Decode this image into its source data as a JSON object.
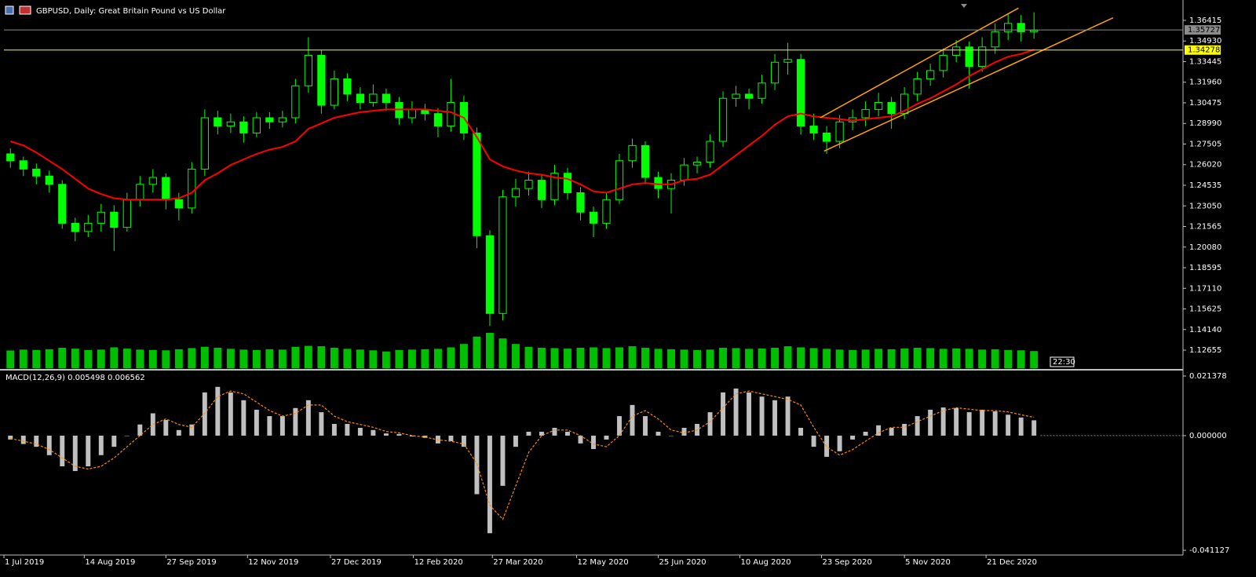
{
  "chart_data": [
    {
      "type": "candlestick",
      "title": "GBPUSD, Daily:  Great Britain Pound vs US Dollar",
      "xlim": [
        0,
        91
      ],
      "ylim": [
        1.113,
        1.376
      ],
      "yticks": [
        1.36415,
        {
          "value": 1.3493,
          "label": "1.34930"
        },
        1.33445,
        {
          "value": 1.3196,
          "label": "1.31960"
        },
        1.30475,
        {
          "value": 1.2899,
          "label": "1.28990"
        },
        1.27505,
        {
          "value": 1.2602,
          "label": "1.26020"
        },
        1.24535,
        {
          "value": 1.2305,
          "label": "1.23050"
        },
        1.21565,
        {
          "value": 1.2008,
          "label": "1.20080"
        },
        1.18595,
        {
          "value": 1.1711,
          "label": "1.17110"
        },
        1.15625,
        {
          "value": 1.1414,
          "label": "1.14140"
        },
        1.12655
      ],
      "color": "#00ff00",
      "ohlc": [
        [
          1.268,
          1.272,
          1.258,
          1.263
        ],
        [
          1.263,
          1.266,
          1.252,
          1.257
        ],
        [
          1.257,
          1.261,
          1.246,
          1.252
        ],
        [
          1.252,
          1.256,
          1.24,
          1.246
        ],
        [
          1.246,
          1.249,
          1.214,
          1.218
        ],
        [
          1.218,
          1.222,
          1.205,
          1.212
        ],
        [
          1.212,
          1.224,
          1.208,
          1.218
        ],
        [
          1.218,
          1.232,
          1.212,
          1.226
        ],
        [
          1.226,
          1.231,
          1.198,
          1.215
        ],
        [
          1.215,
          1.24,
          1.212,
          1.235
        ],
        [
          1.235,
          1.252,
          1.23,
          1.246
        ],
        [
          1.246,
          1.257,
          1.24,
          1.251
        ],
        [
          1.251,
          1.254,
          1.228,
          1.235
        ],
        [
          1.235,
          1.24,
          1.22,
          1.229
        ],
        [
          1.229,
          1.262,
          1.225,
          1.257
        ],
        [
          1.257,
          1.3,
          1.252,
          1.294
        ],
        [
          1.294,
          1.299,
          1.282,
          1.288
        ],
        [
          1.288,
          1.297,
          1.283,
          1.291
        ],
        [
          1.291,
          1.295,
          1.276,
          1.283
        ],
        [
          1.283,
          1.298,
          1.28,
          1.294
        ],
        [
          1.294,
          1.298,
          1.286,
          1.291
        ],
        [
          1.291,
          1.299,
          1.287,
          1.294
        ],
        [
          1.294,
          1.322,
          1.29,
          1.317
        ],
        [
          1.317,
          1.352,
          1.312,
          1.339
        ],
        [
          1.339,
          1.343,
          1.297,
          1.303
        ],
        [
          1.303,
          1.328,
          1.3,
          1.322
        ],
        [
          1.322,
          1.326,
          1.306,
          1.311
        ],
        [
          1.311,
          1.316,
          1.3,
          1.305
        ],
        [
          1.305,
          1.318,
          1.302,
          1.311
        ],
        [
          1.311,
          1.315,
          1.299,
          1.305
        ],
        [
          1.305,
          1.309,
          1.289,
          1.294
        ],
        [
          1.294,
          1.306,
          1.29,
          1.3
        ],
        [
          1.3,
          1.304,
          1.292,
          1.297
        ],
        [
          1.297,
          1.301,
          1.28,
          1.288
        ],
        [
          1.288,
          1.322,
          1.284,
          1.305
        ],
        [
          1.305,
          1.31,
          1.278,
          1.283
        ],
        [
          1.283,
          1.287,
          1.2,
          1.209
        ],
        [
          1.209,
          1.213,
          1.144,
          1.153
        ],
        [
          1.153,
          1.242,
          1.148,
          1.237
        ],
        [
          1.237,
          1.25,
          1.23,
          1.243
        ],
        [
          1.243,
          1.255,
          1.238,
          1.249
        ],
        [
          1.249,
          1.253,
          1.229,
          1.235
        ],
        [
          1.235,
          1.26,
          1.231,
          1.254
        ],
        [
          1.254,
          1.258,
          1.235,
          1.24
        ],
        [
          1.24,
          1.244,
          1.22,
          1.226
        ],
        [
          1.226,
          1.23,
          1.208,
          1.218
        ],
        [
          1.218,
          1.24,
          1.214,
          1.235
        ],
        [
          1.235,
          1.268,
          1.232,
          1.263
        ],
        [
          1.263,
          1.279,
          1.258,
          1.274
        ],
        [
          1.274,
          1.277,
          1.246,
          1.251
        ],
        [
          1.251,
          1.255,
          1.236,
          1.243
        ],
        [
          1.243,
          1.254,
          1.225,
          1.249
        ],
        [
          1.249,
          1.265,
          1.245,
          1.26
        ],
        [
          1.26,
          1.266,
          1.254,
          1.262
        ],
        [
          1.262,
          1.282,
          1.258,
          1.277
        ],
        [
          1.277,
          1.313,
          1.273,
          1.308
        ],
        [
          1.308,
          1.317,
          1.302,
          1.311
        ],
        [
          1.311,
          1.315,
          1.3,
          1.308
        ],
        [
          1.308,
          1.325,
          1.304,
          1.319
        ],
        [
          1.319,
          1.34,
          1.314,
          1.334
        ],
        [
          1.334,
          1.348,
          1.325,
          1.336
        ],
        [
          1.336,
          1.34,
          1.282,
          1.288
        ],
        [
          1.288,
          1.297,
          1.278,
          1.283
        ],
        [
          1.283,
          1.288,
          1.268,
          1.277
        ],
        [
          1.277,
          1.296,
          1.272,
          1.291
        ],
        [
          1.291,
          1.3,
          1.285,
          1.294
        ],
        [
          1.294,
          1.306,
          1.288,
          1.3
        ],
        [
          1.3,
          1.312,
          1.295,
          1.305
        ],
        [
          1.305,
          1.309,
          1.286,
          1.297
        ],
        [
          1.297,
          1.316,
          1.293,
          1.311
        ],
        [
          1.311,
          1.327,
          1.306,
          1.322
        ],
        [
          1.322,
          1.333,
          1.317,
          1.328
        ],
        [
          1.328,
          1.344,
          1.323,
          1.339
        ],
        [
          1.339,
          1.35,
          1.334,
          1.345
        ],
        [
          1.345,
          1.349,
          1.315,
          1.331
        ],
        [
          1.331,
          1.352,
          1.327,
          1.345
        ],
        [
          1.345,
          1.362,
          1.34,
          1.356
        ],
        [
          1.356,
          1.369,
          1.35,
          1.362
        ],
        [
          1.362,
          1.368,
          1.349,
          1.356
        ],
        [
          1.356,
          1.37,
          1.351,
          1.357
        ]
      ],
      "volume": [
        95,
        100,
        98,
        102,
        110,
        105,
        98,
        100,
        112,
        105,
        100,
        98,
        96,
        102,
        108,
        115,
        110,
        104,
        100,
        98,
        102,
        100,
        115,
        120,
        118,
        110,
        104,
        100,
        96,
        90,
        98,
        100,
        102,
        104,
        112,
        130,
        170,
        190,
        160,
        130,
        115,
        110,
        108,
        105,
        110,
        112,
        108,
        112,
        118,
        110,
        104,
        102,
        100,
        98,
        100,
        110,
        108,
        104,
        106,
        110,
        118,
        112,
        108,
        104,
        100,
        98,
        100,
        104,
        102,
        106,
        110,
        108,
        104,
        106,
        104,
        100,
        102,
        98,
        96,
        92
      ],
      "series": [
        {
          "color": "#ff0000",
          "values": [
            1.277,
            1.274,
            1.269,
            1.263,
            1.257,
            1.25,
            1.243,
            1.239,
            1.236,
            1.235,
            1.235,
            1.235,
            1.235,
            1.236,
            1.24,
            1.249,
            1.254,
            1.26,
            1.264,
            1.268,
            1.271,
            1.273,
            1.277,
            1.286,
            1.29,
            1.294,
            1.296,
            1.298,
            1.299,
            1.3,
            1.3,
            1.3,
            1.3,
            1.299,
            1.298,
            1.294,
            1.28,
            1.264,
            1.259,
            1.256,
            1.254,
            1.253,
            1.251,
            1.25,
            1.246,
            1.241,
            1.24,
            1.243,
            1.246,
            1.247,
            1.246,
            1.246,
            1.249,
            1.25,
            1.253,
            1.26,
            1.267,
            1.274,
            1.281,
            1.289,
            1.295,
            1.297,
            1.295,
            1.294,
            1.293,
            1.292,
            1.293,
            1.294,
            1.295,
            1.299,
            1.304,
            1.308,
            1.313,
            1.318,
            1.324,
            1.329,
            1.334,
            1.338,
            1.34,
            1.343
          ]
        }
      ],
      "hlines": [
        {
          "value": 1.35727,
          "color": "#8c8c8c"
        },
        {
          "value": 1.34278,
          "color": "#ffff00"
        }
      ],
      "trendlines": [
        {
          "color": "#ffa500",
          "x": [
            63,
            78.3
          ],
          "y": [
            1.294,
            1.373
          ]
        },
        {
          "color": "#ffa500",
          "x": [
            63.3,
            85.6
          ],
          "y": [
            1.27,
            1.366
          ]
        }
      ],
      "countdown": "22:30"
    },
    {
      "type": "macd",
      "title": "MACD(12,26,9) 0.005498 0.006562",
      "xlim": [
        0,
        91
      ],
      "ylim": [
        -0.041127,
        0.021378
      ],
      "yticks": [
        0.021378,
        {
          "value": 0,
          "label": "0.000000"
        },
        -0.041127
      ],
      "xticks": [
        {
          "value": 0,
          "label": "1 Jul 2019"
        },
        {
          "value": 6.2,
          "label": "14 Aug 2019"
        },
        {
          "value": 12.5,
          "label": "27 Sep 2019"
        },
        {
          "value": 18.8,
          "label": "12 Nov 2019"
        },
        {
          "value": 25.2,
          "label": "27 Dec 2019"
        },
        {
          "value": 31.6,
          "label": "12 Feb 2020"
        },
        {
          "value": 37.7,
          "label": "27 Mar 2020"
        },
        {
          "value": 44.2,
          "label": "12 May 2020"
        },
        {
          "value": 50.5,
          "label": "25 Jun 2020"
        },
        {
          "value": 56.8,
          "label": "10 Aug 2020"
        },
        {
          "value": 63.1,
          "label": "23 Sep 2020"
        },
        {
          "value": 69.5,
          "label": "5 Nov 2020"
        },
        {
          "value": 75.8,
          "label": "21 Dec 2020"
        }
      ],
      "histogram": {
        "color": "#c0c0c0",
        "values": [
          -0.0014,
          -0.003,
          -0.004,
          -0.007,
          -0.011,
          -0.0127,
          -0.011,
          -0.007,
          -0.004,
          0,
          0.004,
          0.008,
          0.0056,
          0.002,
          0.004,
          0.0155,
          0.0175,
          0.0155,
          0.0127,
          0.0093,
          0.007,
          0.007,
          0.0099,
          0.0127,
          0.0084,
          0.0042,
          0.0042,
          0.0028,
          0.002,
          0.0008,
          0.0006,
          -0.0003,
          -0.0008,
          -0.0028,
          -0.002,
          -0.004,
          -0.021,
          -0.035,
          -0.018,
          -0.004,
          0.0014,
          0.0014,
          0.0028,
          0.0014,
          -0.0028,
          -0.0048,
          -0.0014,
          0.007,
          0.011,
          0.007,
          0.0014,
          0,
          0.0028,
          0.0042,
          0.0084,
          0.0155,
          0.0169,
          0.0155,
          0.014,
          0.0127,
          0.014,
          0.0028,
          -0.004,
          -0.0076,
          -0.0056,
          -0.0014,
          0.0014,
          0.0037,
          0.0028,
          0.0042,
          0.007,
          0.0093,
          0.0101,
          0.0099,
          0.0084,
          0.0093,
          0.0087,
          0.0075,
          0.0065,
          0.005498
        ]
      },
      "signal": {
        "color": "#ff8c00",
        "values": [
          -0.001,
          -0.002,
          -0.003,
          -0.005,
          -0.008,
          -0.011,
          -0.012,
          -0.011,
          -0.008,
          -0.004,
          0,
          0.004,
          0.006,
          0.004,
          0.003,
          0.008,
          0.014,
          0.016,
          0.015,
          0.012,
          0.009,
          0.007,
          0.008,
          0.011,
          0.011,
          0.007,
          0.005,
          0.004,
          0.003,
          0.0015,
          0.001,
          0,
          -0.0005,
          -0.0015,
          -0.002,
          -0.003,
          -0.01,
          -0.025,
          -0.03,
          -0.018,
          -0.006,
          0,
          0.002,
          0.002,
          0,
          -0.003,
          -0.004,
          0,
          0.007,
          0.009,
          0.006,
          0.002,
          0.001,
          0.002,
          0.005,
          0.01,
          0.015,
          0.016,
          0.015,
          0.014,
          0.013,
          0.011,
          0.003,
          -0.004,
          -0.007,
          -0.005,
          -0.002,
          0.001,
          0.003,
          0.003,
          0.005,
          0.007,
          0.009,
          0.01,
          0.0095,
          0.009,
          0.009,
          0.0085,
          0.0075,
          0.006562
        ]
      }
    }
  ]
}
